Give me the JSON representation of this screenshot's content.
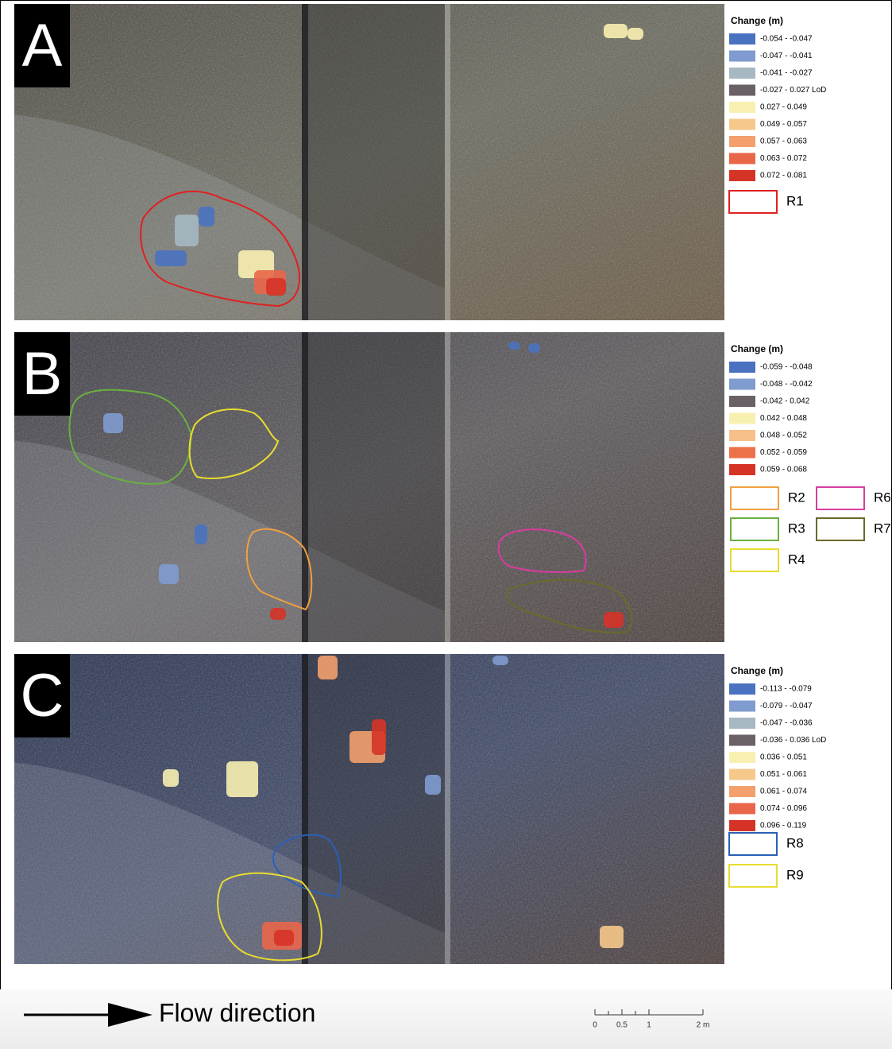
{
  "panels": [
    {
      "label": "A",
      "legend_title": "Change (m)",
      "legend": [
        {
          "label": "-0.054 - -0.047",
          "color": "#4a72c0"
        },
        {
          "label": "-0.047 - -0.041",
          "color": "#7f9bcf"
        },
        {
          "label": "-0.041 - -0.027",
          "color": "#a6b8c2"
        },
        {
          "label": "-0.027 - 0.027 LoD",
          "color": "#6a6166"
        },
        {
          "label": "0.027 - 0.049",
          "color": "#f8f0b0"
        },
        {
          "label": "0.049 - 0.057",
          "color": "#f6c88a"
        },
        {
          "label": "0.057 - 0.063",
          "color": "#f3a06c"
        },
        {
          "label": "0.063 - 0.072",
          "color": "#e9664a"
        },
        {
          "label": "0.072 - 0.081",
          "color": "#d63327"
        }
      ],
      "regions": [
        {
          "name": "R1",
          "color": "#e02020"
        }
      ]
    },
    {
      "label": "B",
      "legend_title": "Change (m)",
      "legend": [
        {
          "label": "-0.059 - -0.048",
          "color": "#4a72c0"
        },
        {
          "label": "-0.048 - -0.042",
          "color": "#7f9bcf"
        },
        {
          "label": "-0.042 - 0.042",
          "color": "#6a6166"
        },
        {
          "label": "0.042 - 0.048",
          "color": "#f8f0b0"
        },
        {
          "label": "0.048 - 0.052",
          "color": "#f6c08a"
        },
        {
          "label": "0.052 - 0.059",
          "color": "#ec7048"
        },
        {
          "label": "0.059 - 0.068",
          "color": "#d63327"
        }
      ],
      "regions": [
        {
          "name": "R2",
          "color": "#f0a040"
        },
        {
          "name": "R6",
          "color": "#d83ca0"
        },
        {
          "name": "R3",
          "color": "#6ab040"
        },
        {
          "name": "R7",
          "color": "#6a6a2a"
        },
        {
          "name": "R4",
          "color": "#e8dc30"
        }
      ]
    },
    {
      "label": "C",
      "legend_title": "Change (m)",
      "legend": [
        {
          "label": "-0.113 - -0.079",
          "color": "#4a72c0"
        },
        {
          "label": "-0.079 - -0.047",
          "color": "#7f9bcf"
        },
        {
          "label": "-0.047 - -0.036",
          "color": "#a6b8c2"
        },
        {
          "label": "-0.036 - 0.036 LoD",
          "color": "#6a6166"
        },
        {
          "label": "0.036 - 0.051",
          "color": "#f8f0b0"
        },
        {
          "label": "0.051 - 0.061",
          "color": "#f6c88a"
        },
        {
          "label": "0.061 - 0.074",
          "color": "#f3a06c"
        },
        {
          "label": "0.074 - 0.096",
          "color": "#e9664a"
        },
        {
          "label": "0.096 - 0.119",
          "color": "#d63327"
        }
      ],
      "regions": [
        {
          "name": "R8",
          "color": "#2a60b8"
        },
        {
          "name": "R9",
          "color": "#e8dc30"
        }
      ]
    }
  ],
  "footer": {
    "flow_label": "Flow direction",
    "scale_labels": [
      "0",
      "0.5",
      "1",
      "2 m"
    ]
  }
}
